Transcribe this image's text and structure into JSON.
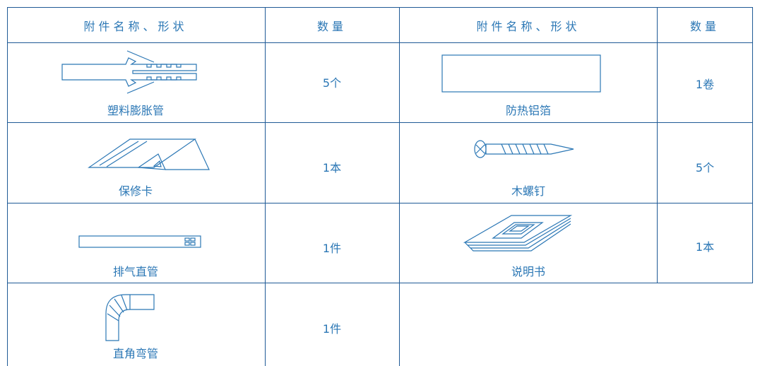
{
  "table": {
    "header": [
      "附件名称、形状",
      "数量",
      "附件名称、形状",
      "数量"
    ],
    "rows": [
      [
        "塑料膨胀管",
        "5个",
        "防热铝箔",
        "1卷"
      ],
      [
        "保修卡",
        "1本",
        "木螺钉",
        "5个"
      ],
      [
        "排气直管",
        "1件",
        "说明书",
        "1本"
      ],
      [
        "直角弯管",
        "1件"
      ]
    ]
  }
}
